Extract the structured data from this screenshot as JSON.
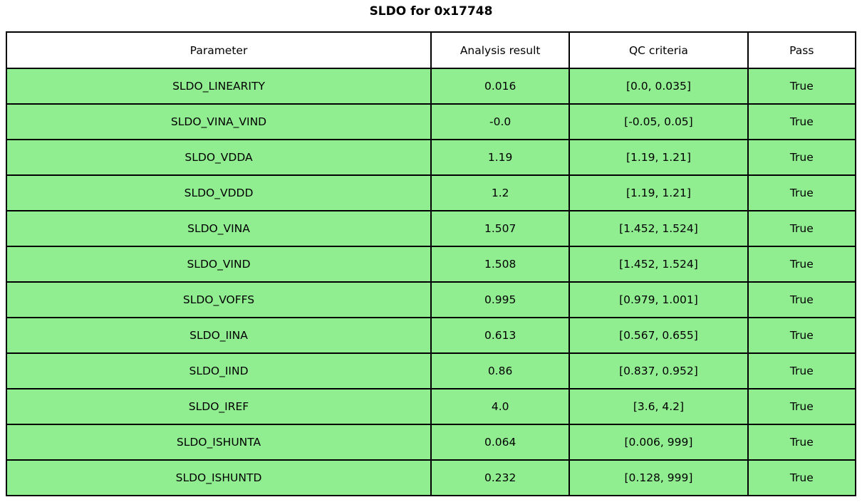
{
  "title": "SLDO for 0x17748",
  "chart_data": {
    "type": "table",
    "title": "SLDO for 0x17748",
    "columns": [
      "Parameter",
      "Analysis result",
      "QC criteria",
      "Pass"
    ],
    "rows": [
      [
        "SLDO_LINEARITY",
        "0.016",
        "[0.0, 0.035]",
        "True"
      ],
      [
        "SLDO_VINA_VIND",
        "-0.0",
        "[-0.05, 0.05]",
        "True"
      ],
      [
        "SLDO_VDDA",
        "1.19",
        "[1.19, 1.21]",
        "True"
      ],
      [
        "SLDO_VDDD",
        "1.2",
        "[1.19, 1.21]",
        "True"
      ],
      [
        "SLDO_VINA",
        "1.507",
        "[1.452, 1.524]",
        "True"
      ],
      [
        "SLDO_VIND",
        "1.508",
        "[1.452, 1.524]",
        "True"
      ],
      [
        "SLDO_VOFFS",
        "0.995",
        "[0.979, 1.001]",
        "True"
      ],
      [
        "SLDO_IINA",
        "0.613",
        "[0.567, 0.655]",
        "True"
      ],
      [
        "SLDO_IIND",
        "0.86",
        "[0.837, 0.952]",
        "True"
      ],
      [
        "SLDO_IREF",
        "4.0",
        "[3.6, 4.2]",
        "True"
      ],
      [
        "SLDO_ISHUNTA",
        "0.064",
        "[0.006, 999]",
        "True"
      ],
      [
        "SLDO_ISHUNTD",
        "0.232",
        "[0.128, 999]",
        "True"
      ]
    ],
    "colors": {
      "row_fill": "#90EE90",
      "header_fill": "#FFFFFF",
      "border": "#000000",
      "text": "#000000"
    },
    "layout": {
      "header_row": true,
      "grid": "all-borders",
      "title_position": "top-center"
    }
  }
}
